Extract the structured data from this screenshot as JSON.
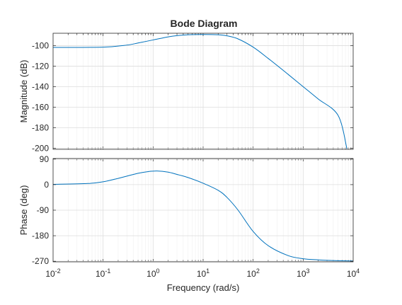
{
  "chart_data": {
    "type": "line",
    "title": "Bode Diagram",
    "xlabel": "Frequency  (rad/s)",
    "x_scale": "log",
    "xlim": [
      0.01,
      10000
    ],
    "x_ticks": [
      {
        "value": 0.01,
        "base": "10",
        "exp": "-2"
      },
      {
        "value": 0.1,
        "base": "10",
        "exp": "-1"
      },
      {
        "value": 1,
        "base": "10",
        "exp": "0"
      },
      {
        "value": 10,
        "base": "10",
        "exp": "1"
      },
      {
        "value": 100,
        "base": "10",
        "exp": "2"
      },
      {
        "value": 1000,
        "base": "10",
        "exp": "3"
      },
      {
        "value": 10000,
        "base": "10",
        "exp": "4"
      }
    ],
    "grid": true,
    "line_color": "#0072BD",
    "panels": [
      {
        "id": "magnitude",
        "ylabel": "Magnitude (dB)",
        "ylim": [
          -201,
          -88
        ],
        "y_ticks": [
          {
            "value": -100,
            "label": "-100"
          },
          {
            "value": -120,
            "label": "-120"
          },
          {
            "value": -140,
            "label": "-140"
          },
          {
            "value": -160,
            "label": "-160"
          },
          {
            "value": -180,
            "label": "-180"
          },
          {
            "value": -200,
            "label": "-200"
          }
        ],
        "series": {
          "x": [
            0.01,
            0.1,
            0.3,
            0.5,
            1,
            2,
            3,
            5,
            10,
            20,
            30,
            50,
            100,
            200,
            500,
            1000,
            2000,
            5000,
            7500
          ],
          "y": [
            -101.8,
            -101.5,
            -99.5,
            -97.5,
            -94.5,
            -91.5,
            -90.3,
            -89.5,
            -89.2,
            -89.5,
            -90.5,
            -93.5,
            -101.5,
            -112.5,
            -128,
            -140,
            -152,
            -168,
            -200.5
          ]
        }
      },
      {
        "id": "phase",
        "ylabel": "Phase (deg)",
        "ylim": [
          -272,
          92
        ],
        "y_ticks": [
          {
            "value": 90,
            "label": "90"
          },
          {
            "value": 0,
            "label": "0"
          },
          {
            "value": -90,
            "label": "-90"
          },
          {
            "value": -180,
            "label": "-180"
          },
          {
            "value": -270,
            "label": "-270"
          }
        ],
        "series": {
          "x": [
            0.01,
            0.05,
            0.1,
            0.2,
            0.3,
            0.5,
            0.8,
            1.2,
            2,
            3,
            5,
            10,
            20,
            30,
            50,
            100,
            200,
            500,
            1000,
            2000,
            5000,
            10000
          ],
          "y": [
            1,
            4,
            10,
            22,
            30,
            40,
            46,
            48,
            44,
            36,
            25,
            5,
            -20,
            -45,
            -90,
            -165,
            -215,
            -250,
            -261,
            -265,
            -268,
            -269
          ]
        }
      }
    ]
  }
}
